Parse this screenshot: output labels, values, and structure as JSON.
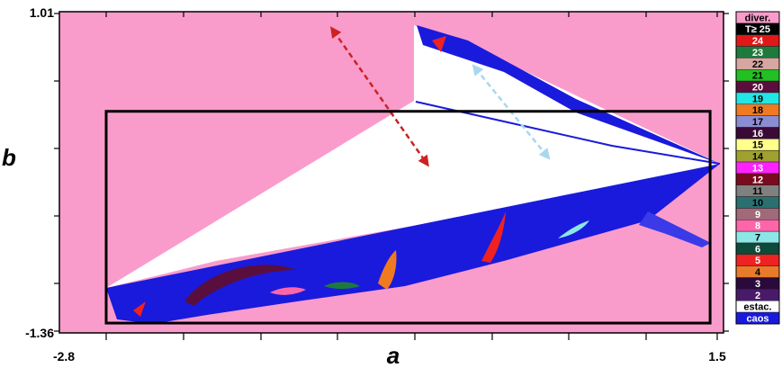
{
  "chart_data": {
    "type": "heatmap",
    "xlabel": "a",
    "ylabel": "b",
    "xlim": [
      -2.8,
      1.5
    ],
    "ylim": [
      -1.36,
      1.01
    ],
    "x_tick_labels": [
      "-2.8",
      "1.5"
    ],
    "y_tick_labels": [
      "1.01",
      "-1.36"
    ],
    "legend": {
      "placement": "right",
      "entries": [
        {
          "label": "diver.",
          "color": "#f99ccc",
          "text_color": "#000000"
        },
        {
          "label": "T≥ 25",
          "color": "#000000",
          "text_color": "#ffffff"
        },
        {
          "label": "24",
          "color": "#e01818",
          "text_color": "#ffffff"
        },
        {
          "label": "23",
          "color": "#1e7a3c",
          "text_color": "#ffffff"
        },
        {
          "label": "22",
          "color": "#d6a6a0",
          "text_color": "#000000"
        },
        {
          "label": "21",
          "color": "#22c022",
          "text_color": "#000000"
        },
        {
          "label": "20",
          "color": "#5a0e3e",
          "text_color": "#ffffff"
        },
        {
          "label": "19",
          "color": "#22e6e6",
          "text_color": "#000000"
        },
        {
          "label": "18",
          "color": "#f07a20",
          "text_color": "#000000"
        },
        {
          "label": "17",
          "color": "#8c8cd2",
          "text_color": "#000000"
        },
        {
          "label": "16",
          "color": "#3a0a36",
          "text_color": "#ffffff"
        },
        {
          "label": "15",
          "color": "#ffff8c",
          "text_color": "#000000"
        },
        {
          "label": "14",
          "color": "#a0a030",
          "text_color": "#000000"
        },
        {
          "label": "13",
          "color": "#ff22ff",
          "text_color": "#ffffff"
        },
        {
          "label": "12",
          "color": "#7a0a1e",
          "text_color": "#ffffff"
        },
        {
          "label": "11",
          "color": "#808080",
          "text_color": "#000000"
        },
        {
          "label": "10",
          "color": "#2a7070",
          "text_color": "#000000"
        },
        {
          "label": "9",
          "color": "#a06a7a",
          "text_color": "#ffffff"
        },
        {
          "label": "8",
          "color": "#ff66aa",
          "text_color": "#ffffff"
        },
        {
          "label": "7",
          "color": "#8ce6e6",
          "text_color": "#000000"
        },
        {
          "label": "6",
          "color": "#0e4a3a",
          "text_color": "#ffffff"
        },
        {
          "label": "5",
          "color": "#ee2222",
          "text_color": "#ffffff"
        },
        {
          "label": "4",
          "color": "#e87a2a",
          "text_color": "#000000"
        },
        {
          "label": "3",
          "color": "#2a0a3a",
          "text_color": "#ffffff"
        },
        {
          "label": "2",
          "color": "#4a1a6a",
          "text_color": "#ffffff"
        },
        {
          "label": "estac.",
          "color": "#ffffff",
          "text_color": "#000000"
        },
        {
          "label": "caos",
          "color": "#1a1adc",
          "text_color": "#ffffff"
        }
      ]
    },
    "background_color": "#f99ccc",
    "stable_color": "#ffffff",
    "chaos_color": "#1a1adc",
    "zoom_box": {
      "a_range": [
        -2.8,
        1.45
      ],
      "b_range": [
        -1.3,
        0.28
      ],
      "color": "#000000"
    },
    "arrows": [
      {
        "color": "#cc2222",
        "from": [
          -1.2,
          0.88
        ],
        "to": [
          -0.55,
          -0.1
        ]
      },
      {
        "color": "#a8d8f0",
        "from": [
          -0.2,
          0.6
        ],
        "to": [
          0.3,
          -0.05
        ]
      }
    ]
  }
}
